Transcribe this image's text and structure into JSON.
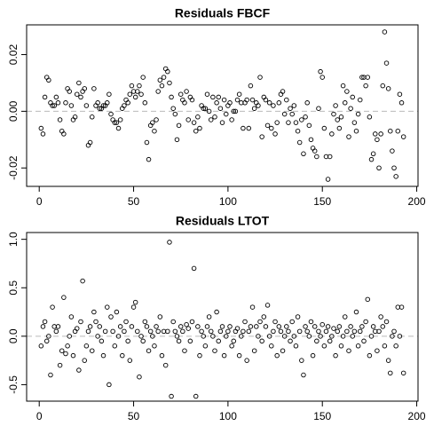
{
  "chart_data": [
    {
      "type": "scatter",
      "title": "Residuals FBCF",
      "color": "#000000",
      "hline": 0,
      "xlim": [
        -6.68,
        200.68
      ],
      "xticks": [
        0,
        50,
        100,
        150,
        200
      ],
      "ylim": [
        -0.0265,
        0.0305
      ],
      "yticks": [
        {
          "value": -0.02,
          "label": "-0.02"
        },
        {
          "value": 0,
          "label": "0.00"
        },
        {
          "value": 0.02,
          "label": "0.02"
        }
      ],
      "x": [
        1,
        2,
        3,
        4,
        5,
        6,
        7,
        8,
        9,
        10,
        11,
        12,
        13,
        14,
        15,
        16,
        17,
        18,
        19,
        20,
        21,
        22,
        23,
        24,
        25,
        26,
        27,
        28,
        29,
        30,
        31,
        32,
        33,
        34,
        35,
        36,
        37,
        38,
        39,
        40,
        41,
        42,
        43,
        44,
        45,
        46,
        47,
        48,
        49,
        50,
        51,
        52,
        53,
        54,
        55,
        56,
        57,
        58,
        59,
        60,
        61,
        62,
        63,
        64,
        65,
        66,
        67,
        68,
        69,
        70,
        71,
        72,
        73,
        74,
        75,
        76,
        77,
        78,
        79,
        80,
        81,
        82,
        83,
        84,
        85,
        86,
        87,
        88,
        89,
        90,
        91,
        92,
        93,
        94,
        95,
        96,
        97,
        98,
        99,
        100,
        101,
        102,
        103,
        104,
        105,
        106,
        107,
        108,
        109,
        110,
        111,
        112,
        113,
        114,
        115,
        116,
        117,
        118,
        119,
        120,
        121,
        122,
        123,
        124,
        125,
        126,
        127,
        128,
        129,
        130,
        131,
        132,
        133,
        134,
        135,
        136,
        137,
        138,
        139,
        140,
        141,
        142,
        143,
        144,
        145,
        146,
        147,
        148,
        149,
        150,
        151,
        152,
        153,
        154,
        155,
        156,
        157,
        158,
        159,
        160,
        161,
        162,
        163,
        164,
        165,
        166,
        167,
        168,
        169,
        170,
        171,
        172,
        173,
        174,
        175,
        176,
        177,
        178,
        179,
        180,
        181,
        182,
        183,
        184,
        185,
        186,
        187,
        188,
        189,
        190,
        191,
        192,
        193
      ],
      "values": [
        -0.006,
        -0.008,
        0.005,
        0.012,
        0.011,
        0.003,
        0.002,
        0.002,
        0.005,
        0.003,
        -0.003,
        -0.007,
        -0.008,
        0.003,
        0.008,
        0.007,
        0.002,
        -0.003,
        -0.002,
        0.006,
        0.01,
        0.005,
        0.007,
        0.008,
        0.002,
        -0.012,
        -0.011,
        -0.002,
        0.008,
        0.002,
        0.003,
        0.001,
        0.001,
        0.002,
        0.002,
        0.003,
        0.006,
        -0.001,
        -0.003,
        -0.004,
        -0.004,
        -0.006,
        -0.003,
        0.001,
        0.002,
        0.004,
        0.003,
        0.006,
        0.009,
        0.007,
        0.005,
        0.007,
        0.009,
        0.006,
        0.012,
        0.003,
        -0.011,
        -0.017,
        -0.005,
        -0.004,
        -0.007,
        -0.003,
        0.007,
        0.011,
        0.009,
        0.012,
        0.015,
        0.014,
        0.01,
        0.005,
        0.001,
        -0.001,
        -0.01,
        -0.005,
        0.006,
        0.004,
        0.003,
        0.007,
        -0.003,
        0.005,
        0.004,
        -0.004,
        -0.007,
        -0.002,
        -0.006,
        0.002,
        0.001,
        0.001,
        0.006,
        0.0,
        -0.003,
        0.005,
        -0.002,
        0.003,
        0.005,
        0.001,
        -0.004,
        0.004,
        -0.001,
        0.002,
        0.003,
        -0.003,
        0.0,
        0.0,
        0.004,
        0.006,
        0.003,
        -0.006,
        0.003,
        0.004,
        -0.006,
        0.009,
        0.004,
        0.001,
        0.003,
        0.002,
        0.012,
        -0.009,
        0.005,
        0.004,
        -0.005,
        0.003,
        -0.006,
        0.002,
        -0.008,
        -0.004,
        0.003,
        0.006,
        0.007,
        -0.001,
        0.004,
        -0.004,
        0.001,
        -0.001,
        0.002,
        -0.004,
        -0.007,
        -0.011,
        -0.003,
        -0.015,
        -0.002,
        0.003,
        -0.005,
        -0.01,
        -0.013,
        -0.014,
        -0.016,
        0.001,
        0.014,
        0.012,
        -0.006,
        -0.016,
        -0.024,
        -0.016,
        -0.008,
        -0.001,
        0.002,
        -0.003,
        -0.006,
        -0.002,
        0.009,
        0.003,
        0.007,
        -0.009,
        0.001,
        0.005,
        -0.004,
        -0.007,
        -0.001,
        0.004,
        0.012,
        0.012,
        0.009,
        0.012,
        -0.002,
        -0.017,
        -0.015,
        -0.008,
        -0.01,
        -0.02,
        -0.008,
        0.009,
        0.028,
        0.017,
        0.008,
        -0.007,
        -0.014,
        -0.02,
        -0.023,
        -0.007,
        0.006,
        0.003,
        -0.009
      ]
    },
    {
      "type": "scatter",
      "title": "Residuals LTOT",
      "color": "#000000",
      "hline": 0,
      "xlim": [
        -6.68,
        200.68
      ],
      "xticks": [
        0,
        50,
        100,
        150,
        200
      ],
      "ylim": [
        -0.67,
        1.07
      ],
      "yticks": [
        {
          "value": -0.5,
          "label": "-0.5"
        },
        {
          "value": 0,
          "label": "0.0"
        },
        {
          "value": 0.5,
          "label": "0.5"
        },
        {
          "value": 1,
          "label": "1.0"
        }
      ],
      "x": [
        1,
        2,
        3,
        4,
        5,
        6,
        7,
        8,
        9,
        10,
        11,
        12,
        13,
        14,
        15,
        16,
        17,
        18,
        19,
        20,
        21,
        22,
        23,
        24,
        25,
        26,
        27,
        28,
        29,
        30,
        31,
        32,
        33,
        34,
        35,
        36,
        37,
        38,
        39,
        40,
        41,
        42,
        43,
        44,
        45,
        46,
        47,
        48,
        49,
        50,
        51,
        52,
        53,
        54,
        55,
        56,
        57,
        58,
        59,
        60,
        61,
        62,
        63,
        64,
        65,
        66,
        67,
        68,
        69,
        70,
        71,
        72,
        73,
        74,
        75,
        76,
        77,
        78,
        79,
        80,
        81,
        82,
        83,
        84,
        85,
        86,
        87,
        88,
        89,
        90,
        91,
        92,
        93,
        94,
        95,
        96,
        97,
        98,
        99,
        100,
        101,
        102,
        103,
        104,
        105,
        106,
        107,
        108,
        109,
        110,
        111,
        112,
        113,
        114,
        115,
        116,
        117,
        118,
        119,
        120,
        121,
        122,
        123,
        124,
        125,
        126,
        127,
        128,
        129,
        130,
        131,
        132,
        133,
        134,
        135,
        136,
        137,
        138,
        139,
        140,
        141,
        142,
        143,
        144,
        145,
        146,
        147,
        148,
        149,
        150,
        151,
        152,
        153,
        154,
        155,
        156,
        157,
        158,
        159,
        160,
        161,
        162,
        163,
        164,
        165,
        166,
        167,
        168,
        169,
        170,
        171,
        172,
        173,
        174,
        175,
        176,
        177,
        178,
        179,
        180,
        181,
        182,
        183,
        184,
        185,
        186,
        187,
        188,
        189,
        190,
        191,
        192,
        193
      ],
      "values": [
        -0.1,
        0.1,
        0.15,
        -0.05,
        0.0,
        -0.4,
        0.3,
        0.1,
        0.05,
        0.1,
        -0.3,
        -0.15,
        0.4,
        -0.18,
        -0.1,
        0.0,
        0.2,
        -0.2,
        0.05,
        0.08,
        -0.35,
        0.15,
        0.57,
        -0.25,
        -0.1,
        0.05,
        0.1,
        -0.15,
        0.25,
        0.15,
        0.0,
        0.1,
        -0.05,
        -0.2,
        0.05,
        0.3,
        -0.5,
        0.2,
        0.05,
        -0.1,
        0.25,
        0.0,
        0.1,
        -0.2,
        0.05,
        0.15,
        -0.05,
        -0.25,
        0.1,
        0.3,
        0.35,
        0.05,
        -0.42,
        0.0,
        -0.05,
        0.15,
        0.1,
        -0.15,
        0.05,
        0.0,
        -0.1,
        0.1,
        0.05,
        0.2,
        -0.2,
        0.05,
        -0.3,
        0.05,
        0.97,
        -0.62,
        0.15,
        0.05,
        0.0,
        -0.05,
        0.1,
        0.05,
        -0.15,
        0.12,
        0.08,
        -0.05,
        0.15,
        0.7,
        -0.62,
        0.1,
        -0.2,
        0.05,
        0.0,
        -0.1,
        0.1,
        0.2,
        0.05,
        0.0,
        -0.15,
        0.25,
        -0.05,
        0.05,
        0.1,
        -0.2,
        0.0,
        0.05,
        0.1,
        -0.1,
        -0.05,
        0.05,
        0.08,
        -0.2,
        0.0,
        0.05,
        0.15,
        -0.25,
        0.05,
        0.1,
        0.3,
        -0.15,
        0.1,
        0.0,
        0.15,
        -0.05,
        0.2,
        0.1,
        0.32,
        0.0,
        -0.1,
        0.05,
        0.15,
        -0.2,
        0.1,
        0.05,
        -0.15,
        0.0,
        0.1,
        0.05,
        -0.05,
        0.15,
        0.0,
        -0.1,
        0.2,
        0.05,
        -0.25,
        -0.4,
        0.1,
        0.05,
        0.0,
        0.15,
        -0.2,
        0.1,
        -0.05,
        0.05,
        0.0,
        0.12,
        -0.1,
        0.05,
        0.1,
        -0.05,
        0.0,
        0.08,
        -0.2,
        0.05,
        0.1,
        -0.1,
        0.0,
        0.2,
        0.05,
        -0.15,
        0.1,
        0.0,
        0.05,
        0.25,
        -0.1,
        0.05,
        0.1,
        -0.05,
        0.15,
        0.38,
        -0.2,
        0.0,
        0.1,
        0.05,
        -0.15,
        0.05,
        0.2,
        0.1,
        -0.1,
        0.15,
        -0.25,
        -0.38,
        0.0,
        0.05,
        -0.1,
        0.3,
        0.0,
        0.3,
        -0.38
      ]
    }
  ]
}
